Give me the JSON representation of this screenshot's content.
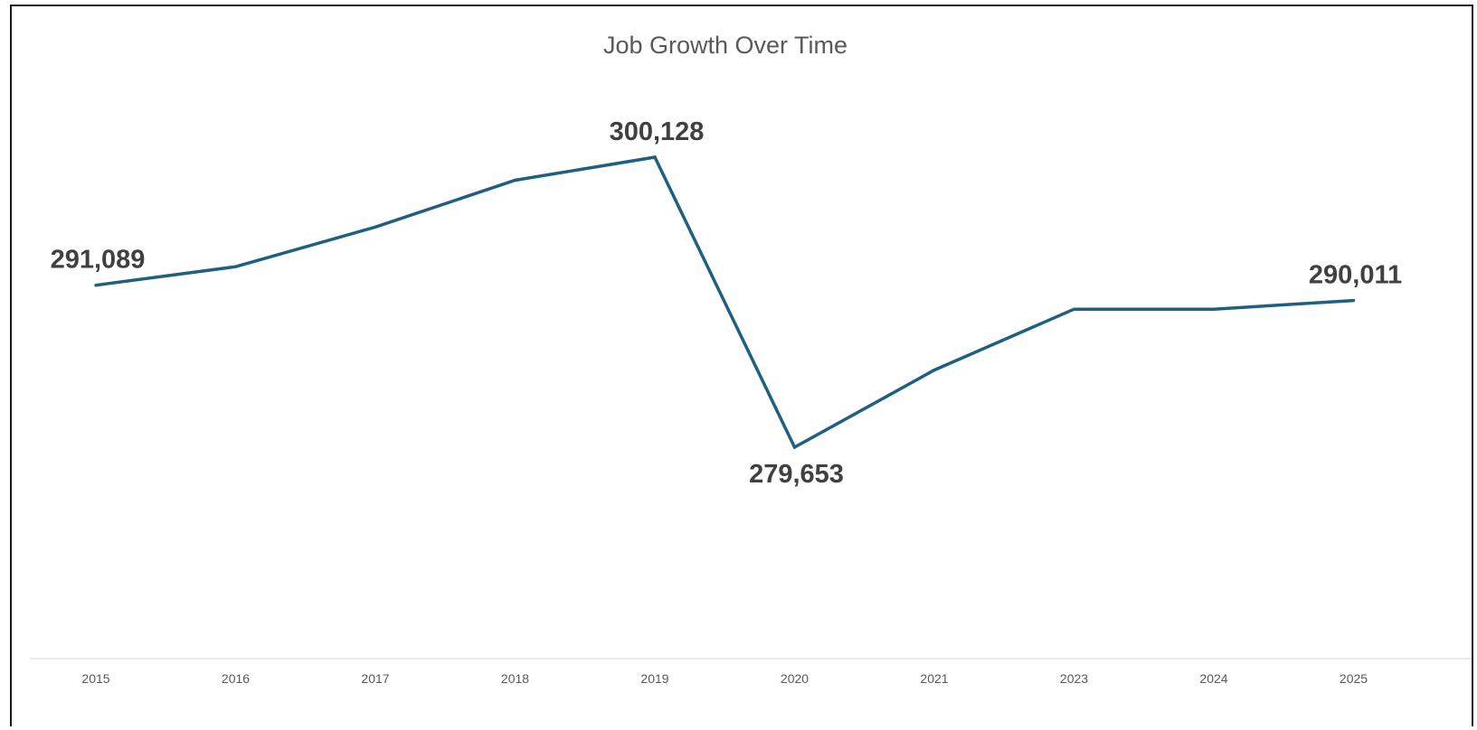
{
  "chart_data": {
    "type": "line",
    "title": "Job Growth Over Time",
    "xlabel": "",
    "ylabel": "",
    "categories": [
      "2015",
      "2016",
      "2017",
      "2018",
      "2019",
      "2020",
      "2021",
      "2023",
      "2024",
      "2025"
    ],
    "series": [
      {
        "values": [
          291089,
          292400,
          295200,
          298500,
          300128,
          279653,
          285100,
          289400,
          289400,
          290011
        ],
        "color": "#1f5f7f"
      }
    ],
    "data_labels": [
      {
        "index": 0,
        "text": "291,089",
        "position": "above"
      },
      {
        "index": 4,
        "text": "300,128",
        "position": "above"
      },
      {
        "index": 5,
        "text": "279,653",
        "position": "below"
      },
      {
        "index": 9,
        "text": "290,011",
        "position": "above"
      }
    ],
    "ylim": [
      270000,
      310000
    ],
    "grid": false,
    "y_axis_visible": false,
    "legend": "none",
    "axis_color": "#d9d9d9"
  }
}
